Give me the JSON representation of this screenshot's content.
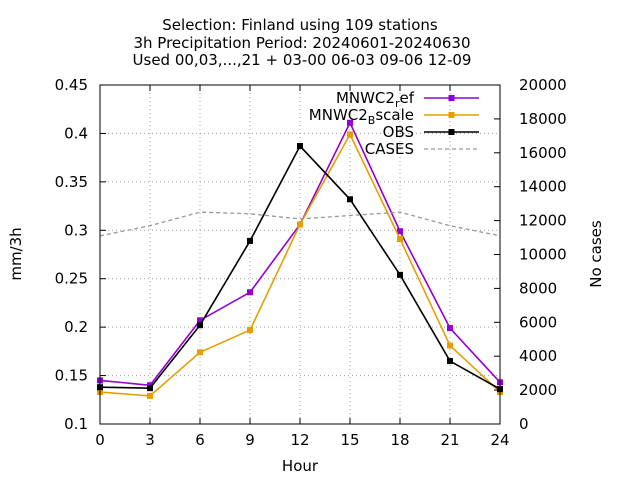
{
  "chart_data": {
    "type": "line",
    "title_lines": [
      "Selection: Finland using    109 stations",
      "3h Precipitation   Period: 20240601-20240630",
      "Used 00,03,...,21 + 03-00 06-03 09-06 12-09"
    ],
    "xlabel": "Hour",
    "ylabel": "mm/3h",
    "y2label": "No cases",
    "x": [
      0,
      3,
      6,
      9,
      12,
      15,
      18,
      21,
      24
    ],
    "xlim": [
      0,
      24
    ],
    "ylim": [
      0.1,
      0.45
    ],
    "y2lim": [
      0,
      20000
    ],
    "xticks": [
      "0",
      "3",
      "6",
      "9",
      "12",
      "15",
      "18",
      "21",
      "24"
    ],
    "yticks": [
      "0.1",
      "0.15",
      "0.2",
      "0.25",
      "0.3",
      "0.35",
      "0.4",
      "0.45"
    ],
    "y2ticks": [
      "0",
      "2000",
      "4000",
      "6000",
      "8000",
      "10000",
      "12000",
      "14000",
      "16000",
      "18000",
      "20000"
    ],
    "grid": true,
    "legend_position": "top-right",
    "series": [
      {
        "name": "MNWC2_ref",
        "label_main": "MNWC2",
        "label_sub": "r",
        "label_tail": "ef",
        "color": "#9400d3",
        "axis": "y",
        "marker": true,
        "dashed": false,
        "values": [
          0.145,
          0.14,
          0.207,
          0.236,
          0.306,
          0.411,
          0.299,
          0.199,
          0.143
        ]
      },
      {
        "name": "MNWC2_Bscale",
        "label_main": "MNWC2",
        "label_sub": "B",
        "label_tail": "scale",
        "color": "#e69f00",
        "axis": "y",
        "marker": true,
        "dashed": false,
        "values": [
          0.133,
          0.129,
          0.174,
          0.197,
          0.306,
          0.399,
          0.291,
          0.181,
          0.133
        ]
      },
      {
        "name": "OBS",
        "label_main": "OBS",
        "label_sub": "",
        "label_tail": "",
        "color": "#000000",
        "axis": "y",
        "marker": true,
        "dashed": false,
        "values": [
          0.138,
          0.137,
          0.202,
          0.289,
          0.387,
          0.332,
          0.254,
          0.165,
          0.136
        ]
      },
      {
        "name": "CASES",
        "label_main": "CASES",
        "label_sub": "",
        "label_tail": "",
        "color": "#999999",
        "axis": "y2",
        "marker": false,
        "dashed": true,
        "values": [
          11100,
          11700,
          12500,
          12400,
          12100,
          12300,
          12500,
          11700,
          11100
        ]
      }
    ]
  }
}
